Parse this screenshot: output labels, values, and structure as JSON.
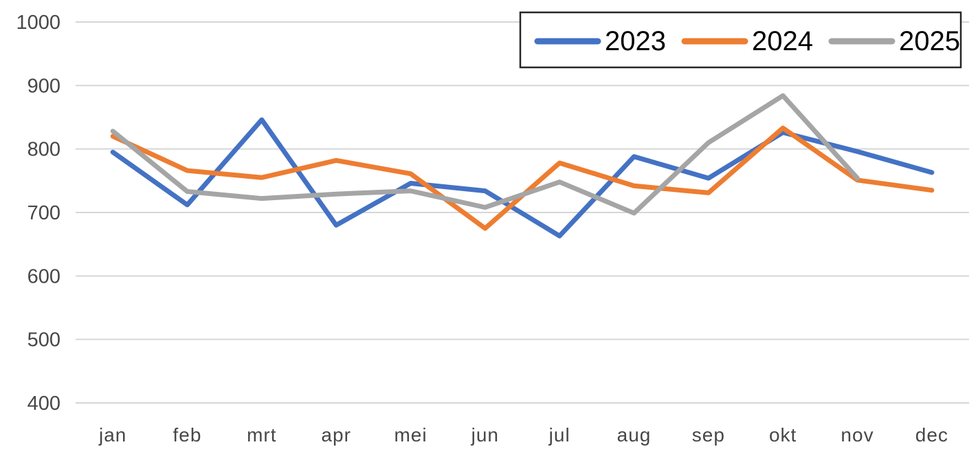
{
  "chart_data": {
    "type": "line",
    "title": "",
    "xlabel": "",
    "ylabel": "",
    "categories": [
      "jan",
      "feb",
      "mrt",
      "apr",
      "mei",
      "jun",
      "jul",
      "aug",
      "sep",
      "okt",
      "nov",
      "dec"
    ],
    "series": [
      {
        "name": "2023",
        "color": "#4472C4",
        "values": [
          795,
          712,
          846,
          680,
          746,
          734,
          663,
          788,
          754,
          826,
          796,
          763
        ]
      },
      {
        "name": "2024",
        "color": "#ED7D31",
        "values": [
          820,
          766,
          755,
          782,
          761,
          675,
          778,
          742,
          731,
          833,
          751,
          735
        ]
      },
      {
        "name": "2025",
        "color": "#A5A5A5",
        "values": [
          828,
          733,
          722,
          729,
          734,
          708,
          748,
          699,
          810,
          884,
          754,
          null
        ]
      }
    ],
    "ylim": [
      400,
      1000
    ],
    "ytick_step": 100,
    "ytick_labels": [
      "400",
      "500",
      "600",
      "700",
      "800",
      "900",
      "1000"
    ],
    "grid": "horizontal",
    "gridline_color": "#d6d6d6",
    "axis_label_color": "#474747",
    "legend": {
      "position": "top-right",
      "border_color": "#262626",
      "background": "#ffffff",
      "entries": [
        "2023",
        "2024",
        "2025"
      ]
    }
  }
}
